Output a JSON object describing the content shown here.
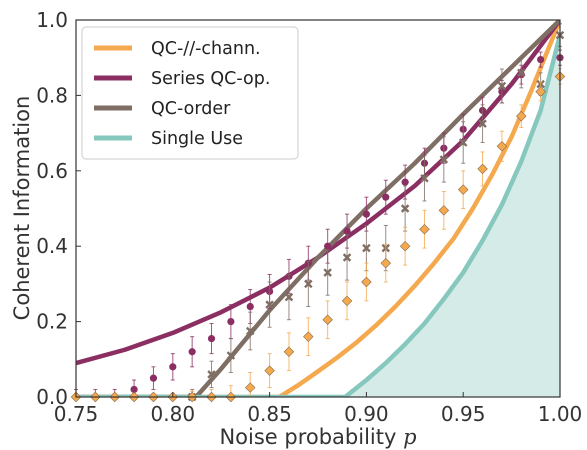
{
  "chart_data": {
    "type": "line",
    "title": "",
    "xlabel": "Noise probability",
    "xlabel_var": "p",
    "ylabel": "Coherent Information",
    "xlim": [
      0.75,
      1.0
    ],
    "ylim": [
      0.0,
      1.0
    ],
    "xticks": [
      "0.75",
      "0.80",
      "0.85",
      "0.90",
      "0.95",
      "1.00"
    ],
    "xtick_values": [
      0.75,
      0.8,
      0.85,
      0.9,
      0.95,
      1.0
    ],
    "yticks": [
      "0.0",
      "0.2",
      "0.4",
      "0.6",
      "0.8",
      "1.0"
    ],
    "ytick_values": [
      0.0,
      0.2,
      0.4,
      0.6,
      0.8,
      1.0
    ],
    "grid": false,
    "legend_position": "top-left",
    "series": [
      {
        "name": "QC-//-chann.",
        "color": "#f5a94e",
        "x": [
          0.75,
          0.855,
          0.865,
          0.875,
          0.885,
          0.895,
          0.905,
          0.915,
          0.925,
          0.935,
          0.945,
          0.955,
          0.965,
          0.975,
          0.985,
          1.0
        ],
        "y": [
          0.0,
          0.0,
          0.032,
          0.068,
          0.105,
          0.145,
          0.19,
          0.24,
          0.295,
          0.355,
          0.42,
          0.5,
          0.59,
          0.69,
          0.81,
          1.0
        ]
      },
      {
        "name": "Series QC-op.",
        "color": "#8b2f63",
        "x": [
          0.75,
          0.775,
          0.8,
          0.825,
          0.85,
          0.875,
          0.9,
          0.925,
          0.95,
          0.975,
          1.0
        ],
        "y": [
          0.09,
          0.125,
          0.17,
          0.225,
          0.29,
          0.37,
          0.46,
          0.56,
          0.68,
          0.83,
          1.0
        ]
      },
      {
        "name": "QC-order",
        "color": "#7f6e64",
        "x": [
          0.75,
          0.812,
          0.825,
          0.85,
          0.875,
          0.9,
          0.925,
          0.95,
          0.975,
          1.0
        ],
        "y": [
          0.0,
          0.0,
          0.075,
          0.23,
          0.37,
          0.5,
          0.62,
          0.75,
          0.875,
          1.0
        ]
      },
      {
        "name": "Single Use",
        "color": "#86c7be",
        "fill": "#d5ebe7",
        "x": [
          0.75,
          0.889,
          0.9,
          0.91,
          0.92,
          0.93,
          0.94,
          0.95,
          0.96,
          0.97,
          0.98,
          0.99,
          1.0
        ],
        "y": [
          0.0,
          0.0,
          0.045,
          0.09,
          0.14,
          0.195,
          0.26,
          0.33,
          0.415,
          0.51,
          0.625,
          0.76,
          0.96
        ]
      }
    ],
    "markers": [
      {
        "series": "Series QC-op.",
        "shape": "circle",
        "color": "#8b2f63",
        "x": [
          0.75,
          0.76,
          0.77,
          0.78,
          0.79,
          0.8,
          0.81,
          0.82,
          0.83,
          0.84,
          0.85,
          0.86,
          0.87,
          0.88,
          0.89,
          0.9,
          0.91,
          0.92,
          0.93,
          0.94,
          0.95,
          0.96,
          0.97,
          0.98,
          0.99,
          1.0
        ],
        "y": [
          0.0,
          0.0,
          0.0,
          0.02,
          0.05,
          0.08,
          0.12,
          0.155,
          0.2,
          0.24,
          0.28,
          0.32,
          0.355,
          0.4,
          0.44,
          0.485,
          0.53,
          0.57,
          0.62,
          0.66,
          0.71,
          0.76,
          0.81,
          0.855,
          0.895,
          0.9
        ],
        "err": [
          0.02,
          0.02,
          0.02,
          0.025,
          0.03,
          0.035,
          0.04,
          0.04,
          0.045,
          0.045,
          0.045,
          0.045,
          0.045,
          0.045,
          0.045,
          0.045,
          0.045,
          0.045,
          0.04,
          0.04,
          0.04,
          0.035,
          0.03,
          0.025,
          0.02,
          0.02
        ]
      },
      {
        "series": "QC-order",
        "shape": "x",
        "color": "#7f6e64",
        "x": [
          0.81,
          0.82,
          0.83,
          0.84,
          0.85,
          0.86,
          0.87,
          0.88,
          0.89,
          0.9,
          0.91,
          0.92,
          0.93,
          0.94,
          0.95,
          0.96,
          0.97,
          0.98,
          0.99,
          1.0
        ],
        "y": [
          0.0,
          0.06,
          0.11,
          0.175,
          0.245,
          0.265,
          0.3,
          0.33,
          0.37,
          0.395,
          0.395,
          0.5,
          0.58,
          0.63,
          0.675,
          0.725,
          0.825,
          0.86,
          0.83,
          0.96
        ],
        "err": [
          0.02,
          0.035,
          0.045,
          0.05,
          0.06,
          0.06,
          0.06,
          0.06,
          0.06,
          0.06,
          0.06,
          0.06,
          0.06,
          0.06,
          0.055,
          0.05,
          0.045,
          0.04,
          0.03,
          0.03
        ]
      },
      {
        "series": "QC-//-chann.",
        "shape": "diamond",
        "color": "#f5a94e",
        "x": [
          0.75,
          0.76,
          0.77,
          0.78,
          0.79,
          0.8,
          0.81,
          0.82,
          0.83,
          0.84,
          0.85,
          0.86,
          0.87,
          0.88,
          0.89,
          0.9,
          0.91,
          0.92,
          0.93,
          0.94,
          0.95,
          0.96,
          0.97,
          0.98,
          0.99,
          1.0
        ],
        "y": [
          0.0,
          0.0,
          0.0,
          0.0,
          0.0,
          0.0,
          0.0,
          0.0,
          0.0,
          0.025,
          0.07,
          0.12,
          0.16,
          0.205,
          0.255,
          0.305,
          0.355,
          0.4,
          0.445,
          0.495,
          0.55,
          0.605,
          0.665,
          0.745,
          0.81,
          0.85
        ],
        "err": [
          0.01,
          0.01,
          0.01,
          0.01,
          0.01,
          0.01,
          0.015,
          0.02,
          0.03,
          0.04,
          0.045,
          0.05,
          0.05,
          0.05,
          0.05,
          0.05,
          0.05,
          0.05,
          0.05,
          0.05,
          0.05,
          0.045,
          0.04,
          0.03,
          0.025,
          0.02
        ]
      }
    ]
  }
}
